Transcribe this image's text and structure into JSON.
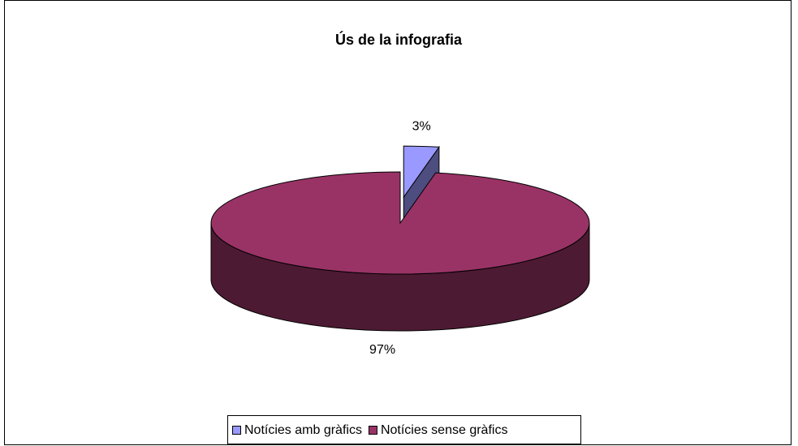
{
  "chart_data": {
    "type": "pie",
    "title": "Ús de la infografia",
    "categories": [
      "Notícies amb gràfics",
      "Notícies sense gràfics"
    ],
    "values": [
      3,
      97
    ],
    "value_labels": [
      "3%",
      "97%"
    ],
    "colors": [
      "#9999ff",
      "#993366"
    ],
    "exploded": [
      true,
      false
    ],
    "legend": "bottom"
  }
}
